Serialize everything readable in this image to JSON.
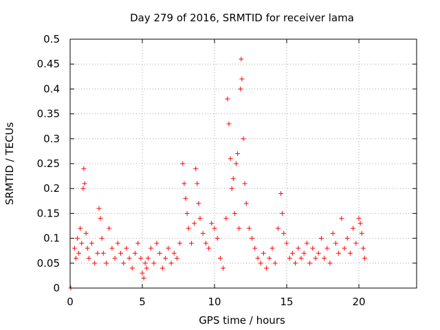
{
  "chart_data": {
    "type": "scatter",
    "title": "Day 279 of 2016, SRMTID for receiver lama",
    "xlabel": "GPS time / hours",
    "ylabel": "SRMTID / TECUs",
    "xlim": [
      0,
      24
    ],
    "ylim": [
      0,
      0.5
    ],
    "xticks": [
      0,
      5,
      10,
      15,
      20
    ],
    "yticks": [
      0,
      0.05,
      0.1,
      0.15,
      0.2,
      0.25,
      0.3,
      0.35,
      0.4,
      0.45,
      0.5
    ],
    "xtick_labels": [
      "0",
      "5",
      "10",
      "15",
      "20"
    ],
    "ytick_labels": [
      "0",
      "0.05",
      "0.1",
      "0.15",
      "0.2",
      "0.25",
      "0.3",
      "0.35",
      "0.4",
      "0.45",
      "0.5"
    ],
    "grid": true,
    "marker": "+",
    "color": "#ff0000",
    "series": [
      {
        "name": "SRMTID",
        "x": [
          0.05,
          0.3,
          0.4,
          0.5,
          0.6,
          0.7,
          0.8,
          0.9,
          0.95,
          1.0,
          1.1,
          1.2,
          1.3,
          1.5,
          1.7,
          1.9,
          2.0,
          2.1,
          2.2,
          2.3,
          2.5,
          2.7,
          2.9,
          3.1,
          3.3,
          3.5,
          3.7,
          3.9,
          4.1,
          4.3,
          4.5,
          4.7,
          4.9,
          5.0,
          5.1,
          5.2,
          5.3,
          5.4,
          5.6,
          5.8,
          6.0,
          6.2,
          6.4,
          6.6,
          6.8,
          7.0,
          7.2,
          7.4,
          7.6,
          7.8,
          7.9,
          8.0,
          8.1,
          8.2,
          8.4,
          8.6,
          8.7,
          8.8,
          8.9,
          9.0,
          9.2,
          9.4,
          9.6,
          9.8,
          10.0,
          10.2,
          10.4,
          10.6,
          10.8,
          10.9,
          11.0,
          11.1,
          11.2,
          11.3,
          11.4,
          11.5,
          11.6,
          11.7,
          11.8,
          11.85,
          11.9,
          12.0,
          12.1,
          12.2,
          12.4,
          12.6,
          12.8,
          13.0,
          13.2,
          13.4,
          13.6,
          13.8,
          14.0,
          14.2,
          14.4,
          14.6,
          14.7,
          14.8,
          15.0,
          15.2,
          15.4,
          15.6,
          15.8,
          16.0,
          16.2,
          16.4,
          16.6,
          16.8,
          17.0,
          17.2,
          17.4,
          17.6,
          17.8,
          18.0,
          18.2,
          18.4,
          18.6,
          18.8,
          19.0,
          19.2,
          19.4,
          19.6,
          19.8,
          20.0,
          20.1,
          20.2,
          20.3,
          20.4
        ],
        "values": [
          0.0,
          0.08,
          0.06,
          0.1,
          0.07,
          0.12,
          0.09,
          0.2,
          0.24,
          0.21,
          0.11,
          0.08,
          0.06,
          0.09,
          0.05,
          0.07,
          0.16,
          0.14,
          0.1,
          0.07,
          0.05,
          0.12,
          0.08,
          0.06,
          0.09,
          0.07,
          0.05,
          0.08,
          0.06,
          0.04,
          0.07,
          0.09,
          0.06,
          0.03,
          0.02,
          0.05,
          0.04,
          0.06,
          0.08,
          0.05,
          0.09,
          0.07,
          0.04,
          0.06,
          0.08,
          0.05,
          0.07,
          0.06,
          0.09,
          0.25,
          0.21,
          0.18,
          0.15,
          0.12,
          0.09,
          0.13,
          0.24,
          0.21,
          0.17,
          0.14,
          0.11,
          0.09,
          0.08,
          0.13,
          0.12,
          0.1,
          0.06,
          0.04,
          0.14,
          0.38,
          0.33,
          0.26,
          0.2,
          0.22,
          0.15,
          0.25,
          0.27,
          0.12,
          0.4,
          0.46,
          0.42,
          0.3,
          0.21,
          0.17,
          0.12,
          0.1,
          0.08,
          0.06,
          0.05,
          0.07,
          0.04,
          0.06,
          0.08,
          0.05,
          0.12,
          0.19,
          0.15,
          0.11,
          0.09,
          0.06,
          0.07,
          0.05,
          0.08,
          0.06,
          0.07,
          0.09,
          0.05,
          0.08,
          0.06,
          0.07,
          0.1,
          0.06,
          0.08,
          0.05,
          0.11,
          0.09,
          0.07,
          0.14,
          0.08,
          0.1,
          0.07,
          0.12,
          0.09,
          0.14,
          0.13,
          0.11,
          0.08,
          0.06
        ]
      }
    ]
  }
}
